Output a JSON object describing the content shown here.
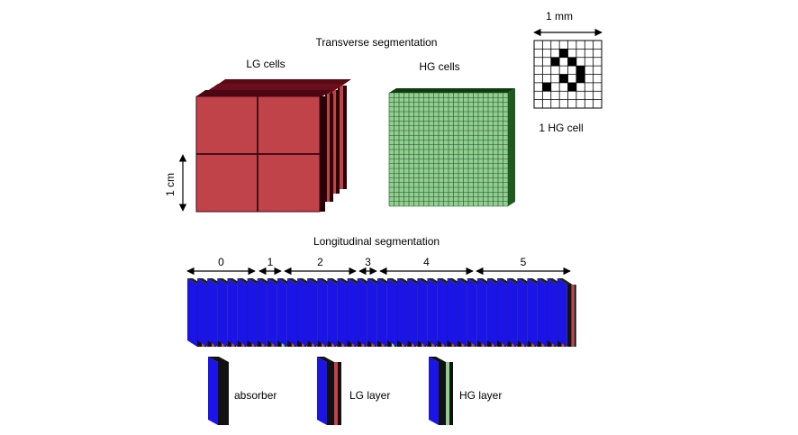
{
  "transverse": {
    "title": "Transverse segmentation",
    "lg_label": "LG cells",
    "hg_label": "HG cells",
    "inset_scale_label": "1 mm",
    "inset_caption": "1 HG cell",
    "cm_label": "1 cm",
    "inset_grid": 8,
    "inset_filled": [
      [
        3,
        1
      ],
      [
        2,
        2
      ],
      [
        4,
        2
      ],
      [
        5,
        3
      ],
      [
        3,
        4
      ],
      [
        5,
        4
      ],
      [
        1,
        5
      ],
      [
        4,
        5
      ]
    ],
    "hg_grid": 24
  },
  "longitudinal": {
    "title": "Longitudinal segmentation",
    "sections": [
      {
        "label": "0"
      },
      {
        "label": "1"
      },
      {
        "label": "2"
      },
      {
        "label": "3"
      },
      {
        "label": "4"
      },
      {
        "label": "5"
      }
    ]
  },
  "legend": {
    "absorber": "absorber",
    "lg_layer": "LG layer",
    "hg_layer": "HG layer"
  },
  "colors": {
    "lg": "#c0434a",
    "hg": "#8fd08f",
    "hg_dark": "#1f5a1f",
    "absorber": "#1a14e6",
    "absorber_legend": "#1f7a1f",
    "lg_text": "#c0434a",
    "hg_text": "#8fd08f",
    "absorber_text": "#1a14e6"
  }
}
